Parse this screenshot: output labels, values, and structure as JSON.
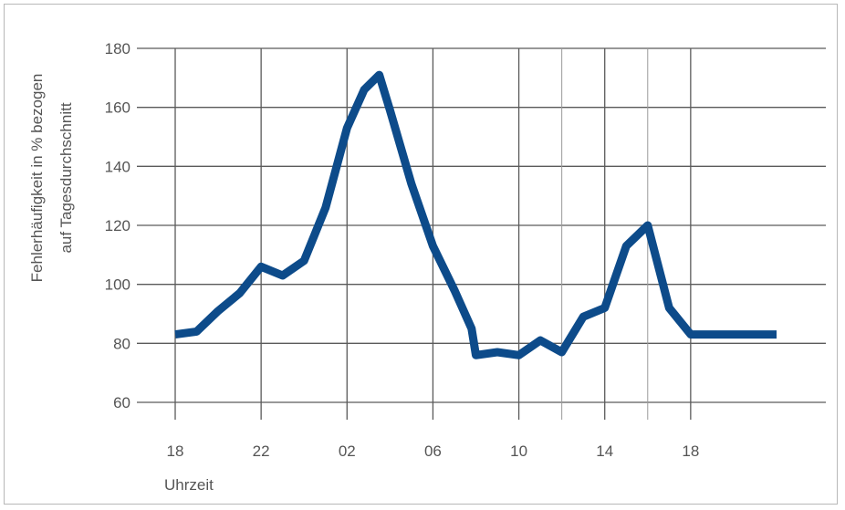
{
  "chart_data": {
    "type": "line",
    "ylabel_line1": "Fehlerhäufigkeit in % bezogen",
    "ylabel_line2": "auf Tagesdurchschnitt",
    "xlabel": "Uhrzeit",
    "x_tick_labels": [
      "18",
      "22",
      "02",
      "06",
      "10",
      "14",
      "18"
    ],
    "y_ticks": [
      60,
      80,
      100,
      120,
      140,
      160,
      180
    ],
    "ylim": [
      60,
      180
    ],
    "grid": true,
    "line_color": "#0d4b8a",
    "series": [
      {
        "x": [
          18,
          19,
          20,
          21,
          22,
          23,
          24,
          25,
          26,
          26.8,
          27.5,
          28,
          29,
          30,
          31,
          31.8,
          32,
          33,
          34,
          35,
          36,
          37,
          38,
          39,
          40,
          41,
          42,
          43,
          44,
          45,
          46
        ],
        "values": [
          83,
          84,
          91,
          97,
          106,
          103,
          108,
          126,
          153,
          166,
          171,
          159,
          134,
          113,
          98,
          85,
          76,
          77,
          76,
          81,
          77,
          89,
          92,
          113,
          120,
          92,
          83,
          83,
          83,
          83,
          83
        ]
      }
    ]
  }
}
